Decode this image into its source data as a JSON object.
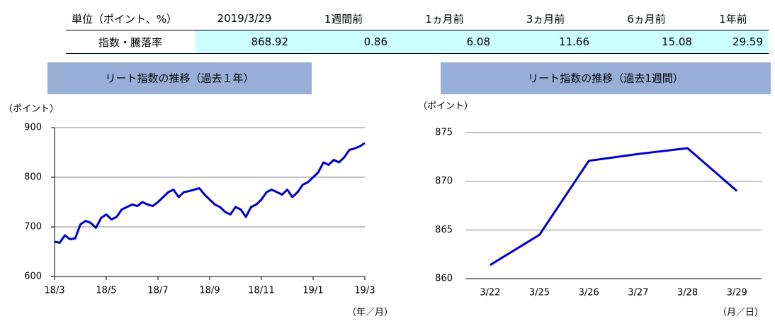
{
  "table": {
    "header": [
      "単位（ポイント、%）",
      "2019/3/29",
      "1週間前",
      "1ヵ月前",
      "3ヵ月前",
      "6ヵ月前",
      "1年前"
    ],
    "rows": [
      [
        "指数・騰落率",
        868.92,
        0.86,
        6.08,
        11.66,
        15.08,
        29.59
      ]
    ]
  },
  "chart_data": [
    {
      "type": "line",
      "title": "リート指数の推移（過去１年）",
      "y_label": "（ポイント）",
      "x_label": "（年／月）",
      "categories": [
        "18/3",
        null,
        null,
        null,
        null,
        null,
        null,
        null,
        null,
        null,
        "18/5",
        null,
        null,
        null,
        null,
        null,
        null,
        null,
        null,
        null,
        "18/7",
        null,
        null,
        null,
        null,
        null,
        null,
        null,
        null,
        null,
        "18/9",
        null,
        null,
        null,
        null,
        null,
        null,
        null,
        null,
        null,
        "18/11",
        null,
        null,
        null,
        null,
        null,
        null,
        null,
        null,
        null,
        "19/1",
        null,
        null,
        null,
        null,
        null,
        null,
        null,
        null,
        null,
        "19/3"
      ],
      "series": [
        {
          "color": "#0000cc",
          "values": [
            670,
            668,
            683,
            675,
            677,
            705,
            712,
            708,
            698,
            718,
            725,
            715,
            720,
            735,
            740,
            745,
            742,
            750,
            745,
            742,
            750,
            760,
            770,
            775,
            760,
            770,
            772,
            775,
            778,
            765,
            755,
            745,
            740,
            730,
            725,
            740,
            735,
            720,
            740,
            745,
            755,
            770,
            775,
            770,
            765,
            775,
            760,
            770,
            785,
            790,
            800,
            810,
            830,
            825,
            835,
            830,
            840,
            855,
            858,
            862,
            869
          ]
        }
      ],
      "ylim": [
        600,
        900
      ],
      "yticks": [
        600,
        700,
        800,
        900
      ],
      "grid": true
    },
    {
      "type": "line",
      "title": "リート指数の推移（過去1週間）",
      "y_label": "（ポイント）",
      "x_label": "（月／日）",
      "categories": [
        "3/22",
        "3/25",
        "3/26",
        "3/27",
        "3/28",
        "3/29"
      ],
      "series": [
        {
          "color": "#0000cc",
          "values": [
            861.4,
            864.5,
            872.1,
            872.8,
            873.4,
            869.0
          ]
        }
      ],
      "ylim": [
        860,
        875
      ],
      "yticks": [
        860,
        865,
        870,
        875
      ],
      "grid": true
    }
  ]
}
